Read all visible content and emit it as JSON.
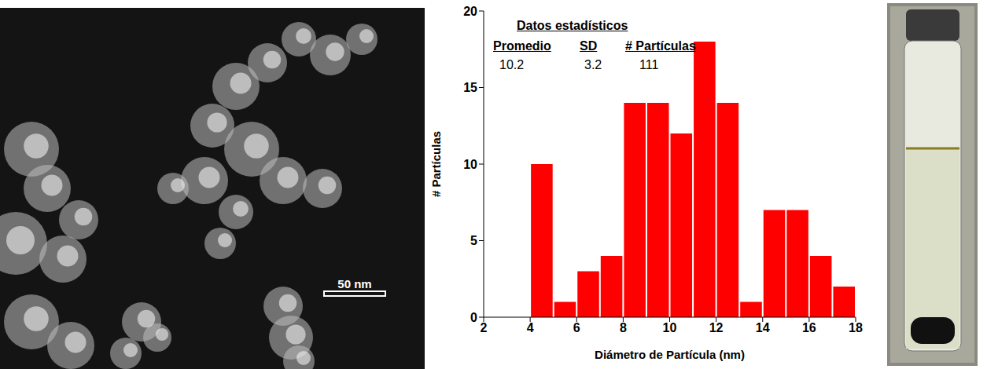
{
  "chart_data": {
    "type": "histogram",
    "x_label": "Diámetro de Partícula (nm)",
    "y_label": "# Partículas",
    "bins": [
      4,
      5,
      6,
      7,
      8,
      9,
      10,
      11,
      12,
      13,
      14,
      15,
      16,
      17,
      18
    ],
    "values": [
      10,
      1,
      3,
      4,
      14,
      14,
      12,
      18,
      14,
      1,
      7,
      7,
      4,
      2
    ],
    "color": "#ff0000",
    "xlim": [
      2,
      18
    ],
    "xticks": [
      2,
      4,
      6,
      8,
      10,
      12,
      14,
      16,
      18
    ],
    "ylim": [
      0,
      20
    ],
    "yticks": [
      0,
      5,
      10,
      15,
      20
    ],
    "grid": false,
    "stats": {
      "title": "Datos estadísticos",
      "headers": [
        "Promedio",
        "SD",
        "# Partículas"
      ],
      "values": [
        10.2,
        3.2,
        111
      ]
    },
    "annotations": [
      "50 nm"
    ]
  }
}
